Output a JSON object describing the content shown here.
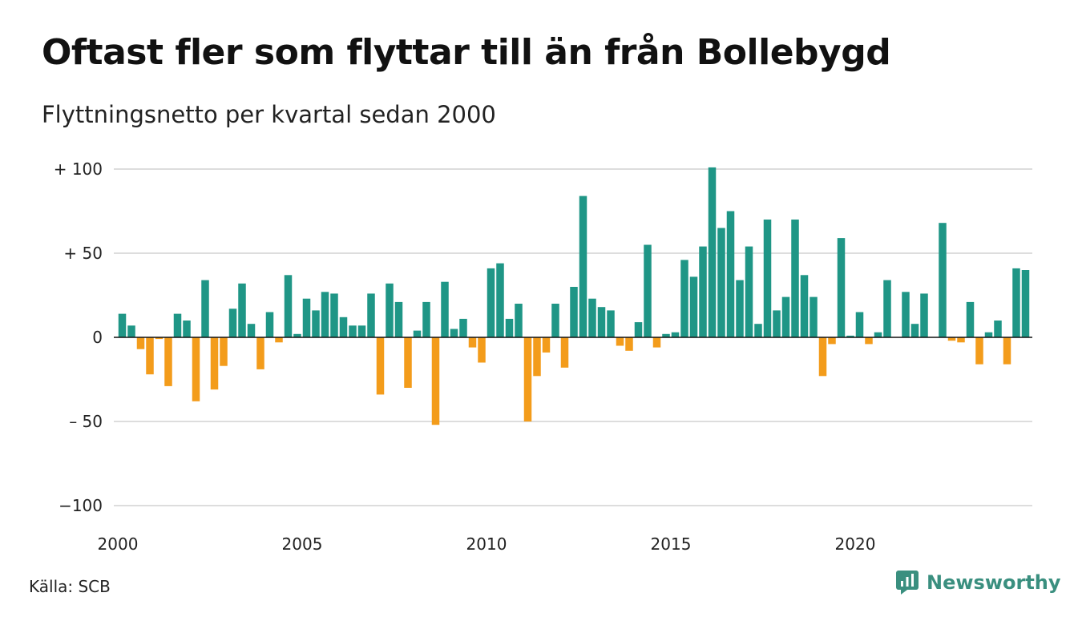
{
  "title": "Oftast fler som flyttar till än från Bollebygd",
  "subtitle": "Flyttningsnetto per kvartal sedan 2000",
  "source": "Källa: SCB",
  "brand": {
    "name": "Newsworthy",
    "icon": "newsworthy-logo-icon"
  },
  "colors": {
    "positive": "#1f9686",
    "negative": "#f39c1b",
    "grid": "#dddddd",
    "brand": "#3a8f7f"
  },
  "chart_data": {
    "type": "bar",
    "x_start_year": 2000,
    "ylim": [
      -100,
      100
    ],
    "grid": true,
    "y_ticks": [
      {
        "value": 100,
        "label": "+ 100"
      },
      {
        "value": 50,
        "label": "+  50"
      },
      {
        "value": 0,
        "label": "0"
      },
      {
        "value": -50,
        "label": "– 50"
      },
      {
        "value": -100,
        "label": "−100"
      }
    ],
    "x_ticks": [
      {
        "value": 2000,
        "label": "2000"
      },
      {
        "value": 2005,
        "label": "2005"
      },
      {
        "value": 2010,
        "label": "2010"
      },
      {
        "value": 2015,
        "label": "2015"
      },
      {
        "value": 2020,
        "label": "2020"
      }
    ],
    "values": [
      14,
      7,
      -7,
      -22,
      -1,
      -29,
      14,
      10,
      -38,
      34,
      -31,
      -17,
      17,
      32,
      8,
      -19,
      15,
      -3,
      37,
      2,
      23,
      16,
      27,
      26,
      12,
      7,
      7,
      26,
      -34,
      32,
      21,
      -30,
      4,
      21,
      -52,
      33,
      5,
      11,
      -6,
      -15,
      41,
      44,
      11,
      20,
      -50,
      -23,
      -9,
      20,
      -18,
      30,
      84,
      23,
      18,
      16,
      -5,
      -8,
      9,
      55,
      -6,
      2,
      3,
      46,
      36,
      54,
      101,
      65,
      75,
      34,
      54,
      8,
      70,
      16,
      24,
      70,
      37,
      24,
      -23,
      -4,
      59,
      1,
      15,
      -4,
      3,
      34,
      0,
      27,
      8,
      26,
      0,
      68,
      -2,
      -3,
      21,
      -16,
      3,
      10,
      -16,
      41,
      40
    ]
  }
}
